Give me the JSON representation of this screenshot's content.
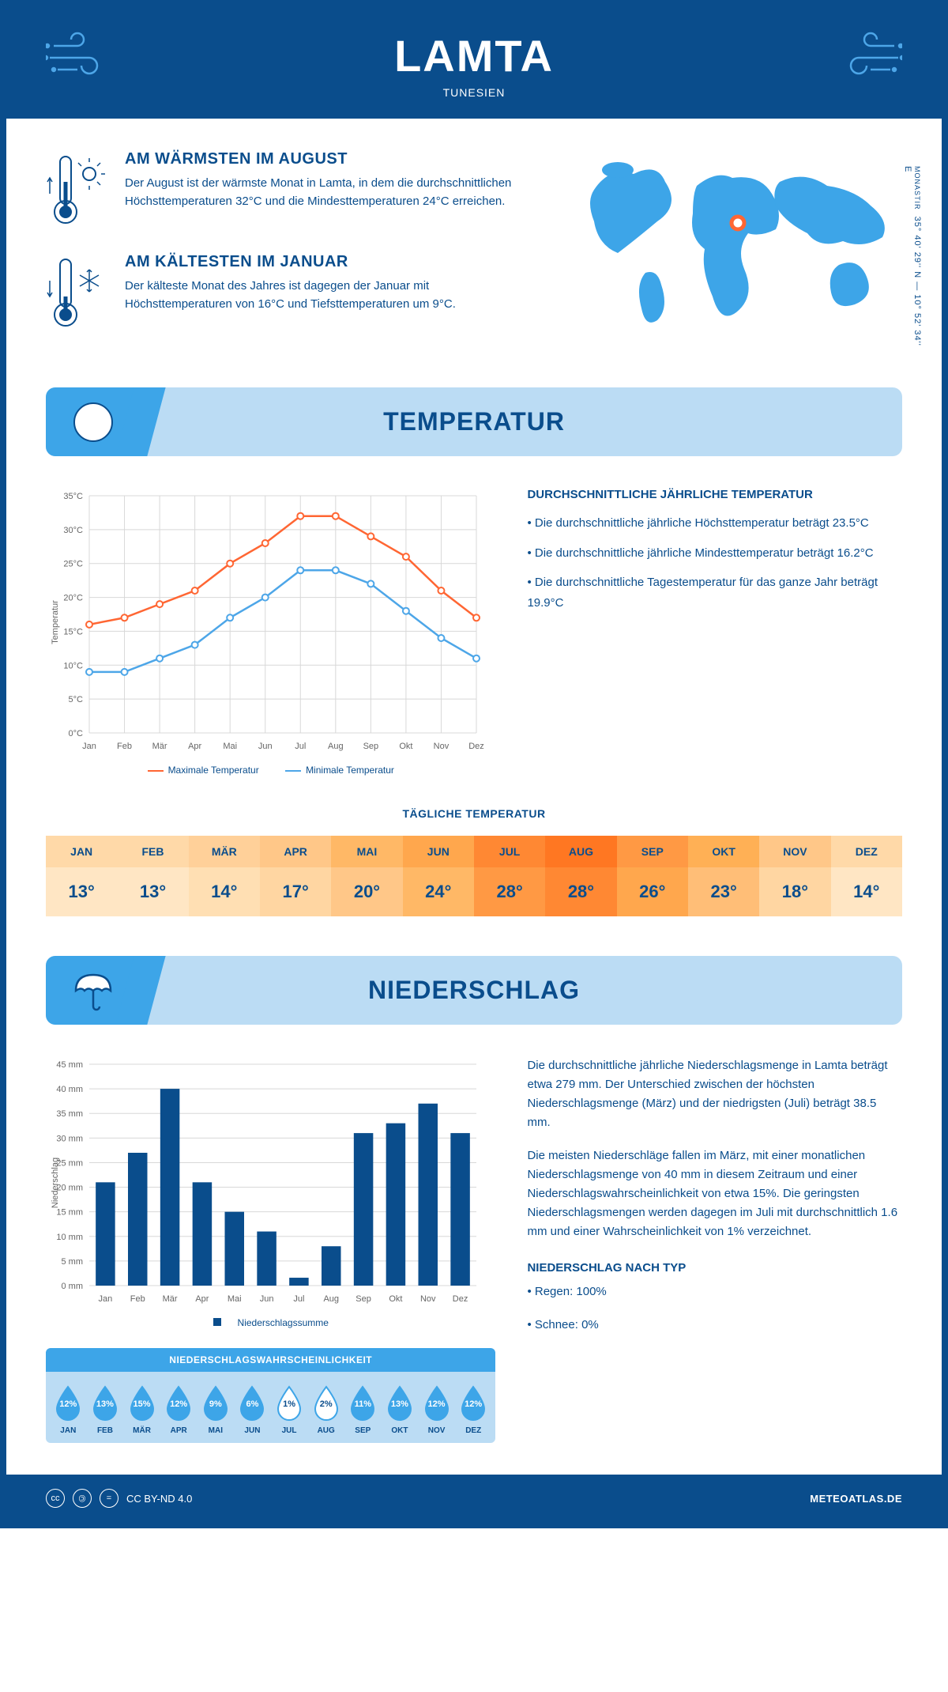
{
  "header": {
    "title": "LAMTA",
    "subtitle": "TUNESIEN"
  },
  "coords": {
    "text": "35° 40' 29'' N — 10° 52' 34'' E",
    "region": "MONASTIR"
  },
  "warmest": {
    "title": "AM WÄRMSTEN IM AUGUST",
    "text": "Der August ist der wärmste Monat in Lamta, in dem die durchschnittlichen Höchsttemperaturen 32°C und die Mindesttemperaturen 24°C erreichen."
  },
  "coldest": {
    "title": "AM KÄLTESTEN IM JANUAR",
    "text": "Der kälteste Monat des Jahres ist dagegen der Januar mit Höchsttemperaturen von 16°C und Tiefsttemperaturen um 9°C."
  },
  "section_temp": "TEMPERATUR",
  "section_precip": "NIEDERSCHLAG",
  "temp_chart": {
    "ylabel": "Temperatur",
    "months": [
      "Jan",
      "Feb",
      "Mär",
      "Apr",
      "Mai",
      "Jun",
      "Jul",
      "Aug",
      "Sep",
      "Okt",
      "Nov",
      "Dez"
    ],
    "max": [
      16,
      17,
      19,
      21,
      25,
      28,
      32,
      32,
      29,
      26,
      21,
      17
    ],
    "min": [
      9,
      9,
      11,
      13,
      17,
      20,
      24,
      24,
      22,
      18,
      14,
      11
    ],
    "ylim": [
      0,
      35
    ],
    "ytick_step": 5,
    "max_color": "#ff6633",
    "min_color": "#4da6e8",
    "grid_color": "#d8d8d8",
    "axis_color": "#666",
    "legend_max": "Maximale Temperatur",
    "legend_min": "Minimale Temperatur"
  },
  "temp_info": {
    "heading": "DURCHSCHNITTLICHE JÄHRLICHE TEMPERATUR",
    "b1": "• Die durchschnittliche jährliche Höchsttemperatur beträgt 23.5°C",
    "b2": "• Die durchschnittliche jährliche Mindesttemperatur beträgt 16.2°C",
    "b3": "• Die durchschnittliche Tagestemperatur für das ganze Jahr beträgt 19.9°C"
  },
  "daily_temp": {
    "heading": "TÄGLICHE TEMPERATUR",
    "months": [
      "JAN",
      "FEB",
      "MÄR",
      "APR",
      "MAI",
      "JUN",
      "JUL",
      "AUG",
      "SEP",
      "OKT",
      "NOV",
      "DEZ"
    ],
    "values": [
      "13°",
      "13°",
      "14°",
      "17°",
      "20°",
      "24°",
      "28°",
      "28°",
      "26°",
      "23°",
      "18°",
      "14°"
    ],
    "header_colors": [
      "#ffd9a8",
      "#ffd9a8",
      "#ffd099",
      "#ffc788",
      "#ffb866",
      "#ffa74d",
      "#ff8833",
      "#ff7722",
      "#ff9944",
      "#ffb055",
      "#ffc788",
      "#ffd9a8"
    ],
    "value_colors": [
      "#ffe6c4",
      "#ffe6c4",
      "#ffdfb3",
      "#ffd6a2",
      "#ffc788",
      "#ffb866",
      "#ff9944",
      "#ff8833",
      "#ffa74d",
      "#ffbe77",
      "#ffd6a2",
      "#ffe6c4"
    ]
  },
  "precip_chart": {
    "ylabel": "Niederschlag",
    "months": [
      "Jan",
      "Feb",
      "Mär",
      "Apr",
      "Mai",
      "Jun",
      "Jul",
      "Aug",
      "Sep",
      "Okt",
      "Nov",
      "Dez"
    ],
    "values": [
      21,
      27,
      40,
      21,
      15,
      11,
      1.6,
      8,
      31,
      33,
      37,
      31
    ],
    "ylim": [
      0,
      45
    ],
    "ytick_step": 5,
    "bar_color": "#0a4d8c",
    "grid_color": "#d8d8d8",
    "legend": "Niederschlagssumme"
  },
  "precip_info": {
    "p1": "Die durchschnittliche jährliche Niederschlagsmenge in Lamta beträgt etwa 279 mm. Der Unterschied zwischen der höchsten Niederschlagsmenge (März) und der niedrigsten (Juli) beträgt 38.5 mm.",
    "p2": "Die meisten Niederschläge fallen im März, mit einer monatlichen Niederschlagsmenge von 40 mm in diesem Zeitraum und einer Niederschlagswahrscheinlichkeit von etwa 15%. Die geringsten Niederschlagsmengen werden dagegen im Juli mit durchschnittlich 1.6 mm und einer Wahrscheinlichkeit von 1% verzeichnet.",
    "type_heading": "NIEDERSCHLAG NACH TYP",
    "type_rain": "• Regen: 100%",
    "type_snow": "• Schnee: 0%"
  },
  "prob": {
    "heading": "NIEDERSCHLAGSWAHRSCHEINLICHKEIT",
    "months": [
      "JAN",
      "FEB",
      "MÄR",
      "APR",
      "MAI",
      "JUN",
      "JUL",
      "AUG",
      "SEP",
      "OKT",
      "NOV",
      "DEZ"
    ],
    "values": [
      "12%",
      "13%",
      "15%",
      "12%",
      "9%",
      "6%",
      "1%",
      "2%",
      "11%",
      "13%",
      "12%",
      "12%"
    ],
    "nums": [
      12,
      13,
      15,
      12,
      9,
      6,
      1,
      2,
      11,
      13,
      12,
      12
    ],
    "fill_color": "#3da5e8",
    "empty_color": "#ffffff",
    "stroke": "#3da5e8"
  },
  "footer": {
    "cc": "CC BY-ND 4.0",
    "site": "METEOATLAS.DE"
  }
}
